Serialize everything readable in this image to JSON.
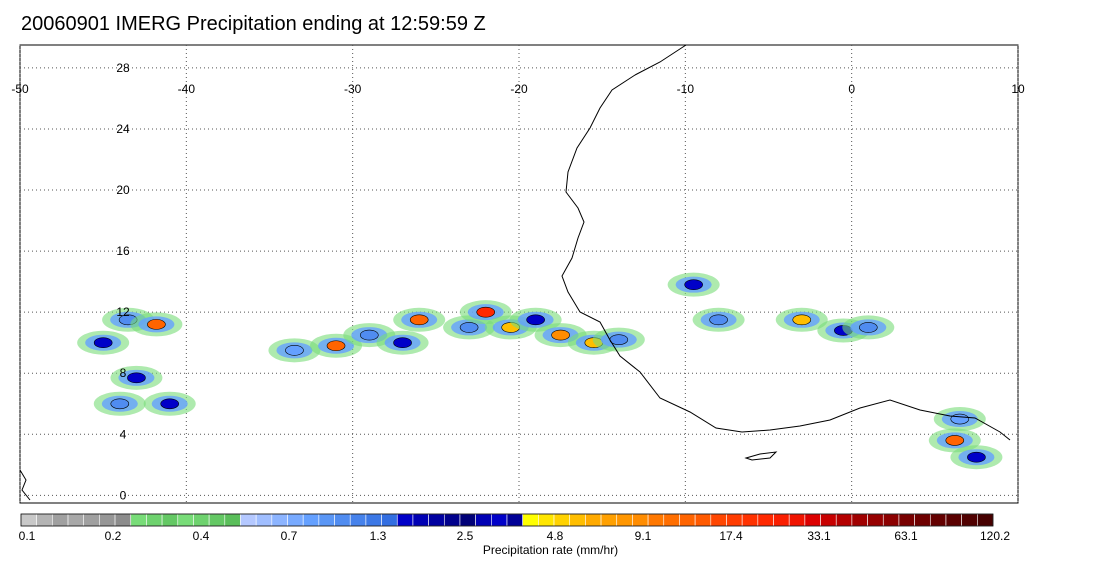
{
  "title": "20060901 IMERG Precipitation ending at 12:59:59 Z",
  "map": {
    "lon_labels": [
      "-50",
      "-40",
      "-30",
      "-20",
      "-10",
      "0",
      "10"
    ],
    "lat_labels": [
      "28",
      "24",
      "20",
      "16",
      "12",
      "8",
      "4",
      "0"
    ],
    "lon_range": [
      -50,
      10
    ],
    "lat_range": [
      -0.5,
      29.5
    ],
    "grid": "dotted",
    "coastline_color": "#000000"
  },
  "colorbar": {
    "label": "Precipitation rate (mm/hr)",
    "tick_labels": [
      "0.1",
      "0.2",
      "0.4",
      "0.7",
      "1.3",
      "2.5",
      "4.8",
      "9.1",
      "17.4",
      "33.1",
      "63.1",
      "120.2"
    ],
    "colors": [
      "#c8c8c8",
      "#b4b4b4",
      "#a0a0a0",
      "#a8a8a8",
      "#a0a0a0",
      "#969696",
      "#8c8c8c",
      "#78dc78",
      "#6ed26e",
      "#64c864",
      "#78dc78",
      "#6ed26e",
      "#64c864",
      "#5abe5a",
      "#b4c8ff",
      "#a0beff",
      "#8cb4ff",
      "#78aaff",
      "#64a0ff",
      "#5a96f5",
      "#508cf0",
      "#4682eb",
      "#3c78e6",
      "#326ee1",
      "#0000c8",
      "#0000b4",
      "#0000a0",
      "#00008c",
      "#000078",
      "#0000b4",
      "#0000c8",
      "#000096",
      "#ffff00",
      "#ffe600",
      "#ffd200",
      "#ffbe00",
      "#ffaa00",
      "#ffa000",
      "#ff9600",
      "#ff8c00",
      "#ff7800",
      "#ff6e00",
      "#ff6400",
      "#ff5a00",
      "#ff4600",
      "#ff3c00",
      "#ff3200",
      "#ff2800",
      "#fa1e00",
      "#f01400",
      "#dc0000",
      "#c80000",
      "#b40000",
      "#a00000",
      "#960000",
      "#8c0000",
      "#780000",
      "#6e0000",
      "#640000",
      "#5a0000",
      "#500000",
      "#460000"
    ]
  },
  "precip_cells": [
    {
      "lon": -43.5,
      "lat": 11.5,
      "color": "#508cf0"
    },
    {
      "lon": -41.8,
      "lat": 11.2,
      "color": "#ff6400"
    },
    {
      "lon": -45.0,
      "lat": 10.0,
      "color": "#0000c8"
    },
    {
      "lon": -43.0,
      "lat": 7.7,
      "color": "#0000c8"
    },
    {
      "lon": -44.0,
      "lat": 6.0,
      "color": "#508cf0"
    },
    {
      "lon": -41.0,
      "lat": 6.0,
      "color": "#0000c8"
    },
    {
      "lon": -33.5,
      "lat": 9.5,
      "color": "#64a0ff"
    },
    {
      "lon": -31.0,
      "lat": 9.8,
      "color": "#ff6400"
    },
    {
      "lon": -29.0,
      "lat": 10.5,
      "color": "#508cf0"
    },
    {
      "lon": -26.0,
      "lat": 11.5,
      "color": "#ff6400"
    },
    {
      "lon": -27.0,
      "lat": 10.0,
      "color": "#0000c8"
    },
    {
      "lon": -23.0,
      "lat": 11.0,
      "color": "#508cf0"
    },
    {
      "lon": -22.0,
      "lat": 12.0,
      "color": "#ff2800"
    },
    {
      "lon": -20.5,
      "lat": 11.0,
      "color": "#ffbe00"
    },
    {
      "lon": -19.0,
      "lat": 11.5,
      "color": "#0000c8"
    },
    {
      "lon": -17.5,
      "lat": 10.5,
      "color": "#ff8c00"
    },
    {
      "lon": -15.5,
      "lat": 10.0,
      "color": "#ffbe00"
    },
    {
      "lon": -14.0,
      "lat": 10.2,
      "color": "#508cf0"
    },
    {
      "lon": -9.5,
      "lat": 13.8,
      "color": "#0000c8"
    },
    {
      "lon": -8.0,
      "lat": 11.5,
      "color": "#508cf0"
    },
    {
      "lon": -3.0,
      "lat": 11.5,
      "color": "#ffbe00"
    },
    {
      "lon": -0.5,
      "lat": 10.8,
      "color": "#0000c8"
    },
    {
      "lon": 1.0,
      "lat": 11.0,
      "color": "#508cf0"
    },
    {
      "lon": 6.2,
      "lat": 3.6,
      "color": "#ff6400"
    },
    {
      "lon": 7.5,
      "lat": 2.5,
      "color": "#0000c8"
    },
    {
      "lon": 6.5,
      "lat": 5.0,
      "color": "#64a0ff"
    }
  ]
}
